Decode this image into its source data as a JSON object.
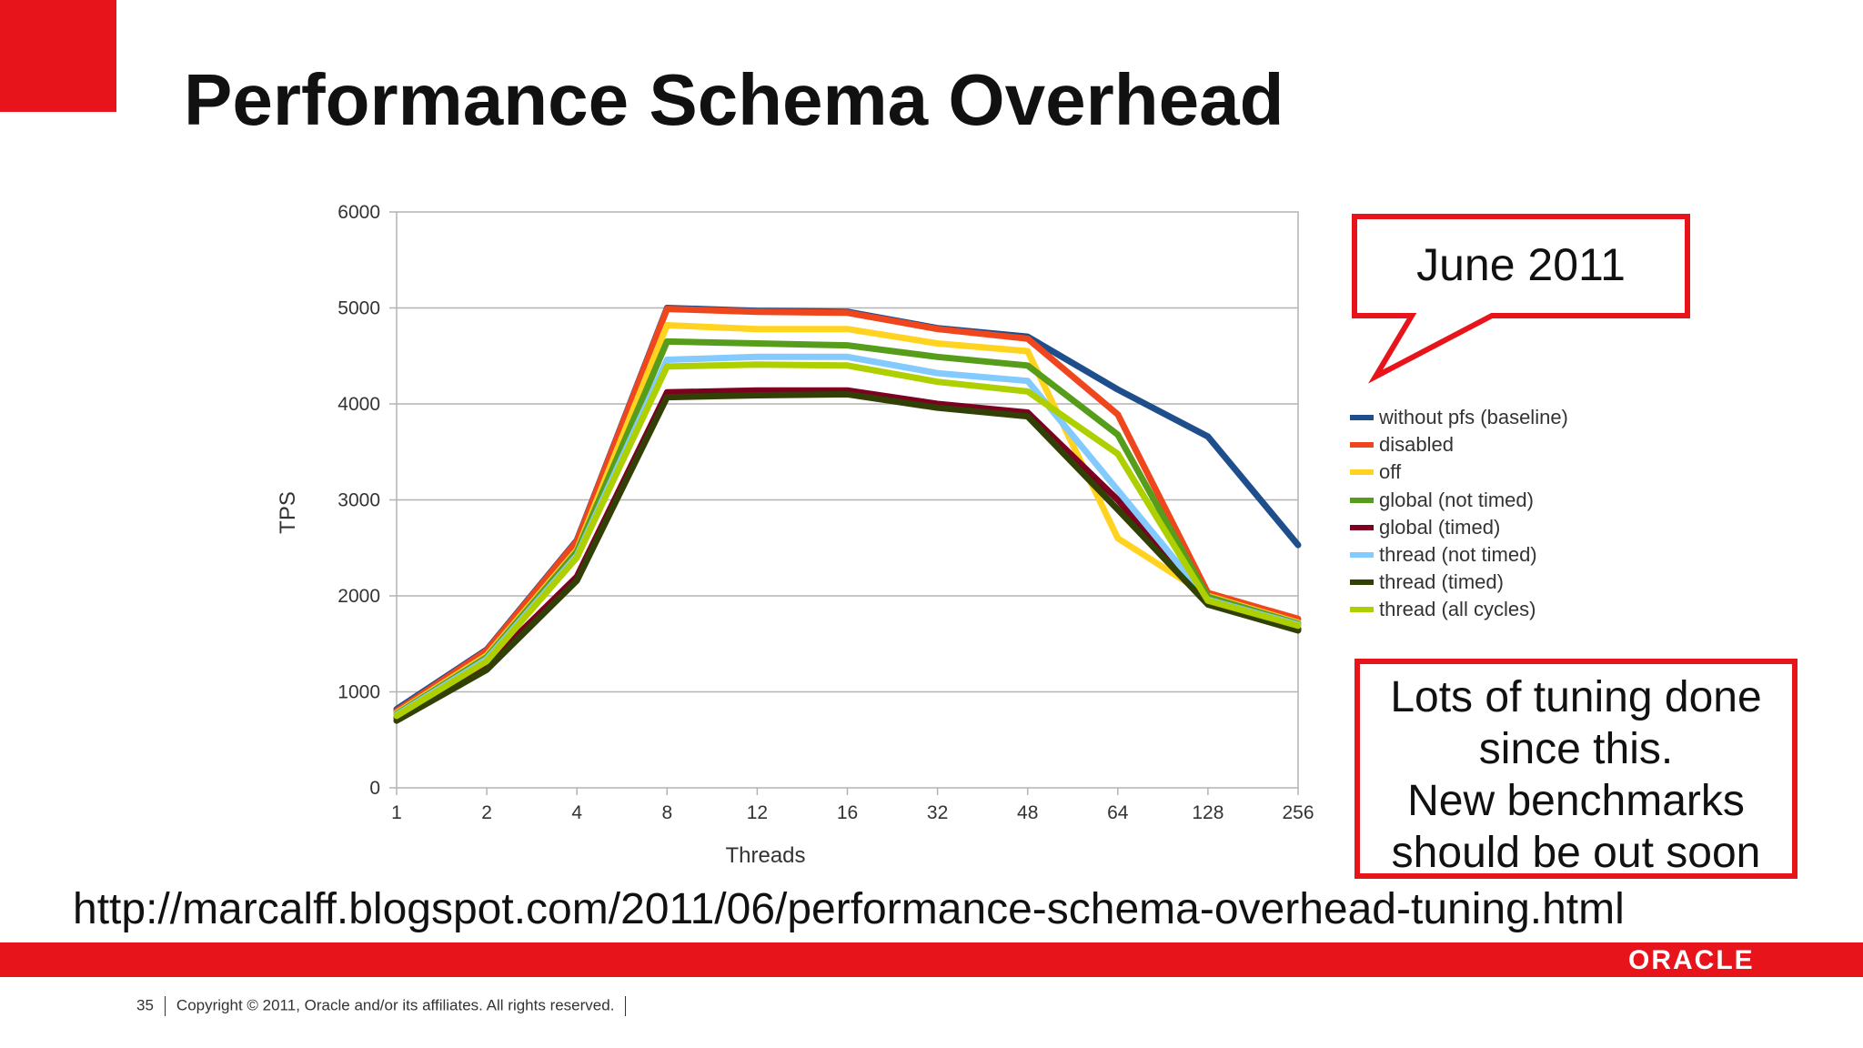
{
  "slide": {
    "title": "Performance Schema Overhead",
    "callout_date": "June 2011",
    "note": "Lots of tuning done\nsince this.\nNew benchmarks\nshould be out soon",
    "url": "http://marcalff.blogspot.com/2011/06/performance-schema-overhead-tuning.html",
    "logo_text": "ORACLE",
    "page_number": "35",
    "copyright": "Copyright © 2011, Oracle and/or its affiliates. All rights reserved.",
    "accent_color": "#e8141c"
  },
  "chart_data": {
    "type": "line",
    "xlabel": "Threads",
    "ylabel": "TPS",
    "categories": [
      "1",
      "2",
      "4",
      "8",
      "12",
      "16",
      "32",
      "48",
      "64",
      "128",
      "256"
    ],
    "ylim": [
      0,
      6000
    ],
    "yticks": [
      0,
      1000,
      2000,
      3000,
      4000,
      5000,
      6000
    ],
    "grid": true,
    "legend_position": "right",
    "series": [
      {
        "name": "without pfs (baseline)",
        "color": "#1f4e8c",
        "values": [
          820,
          1440,
          2580,
          5000,
          4970,
          4960,
          4790,
          4700,
          4150,
          3660,
          2530
        ]
      },
      {
        "name": "disabled",
        "color": "#f0461e",
        "values": [
          800,
          1430,
          2570,
          4990,
          4960,
          4950,
          4780,
          4680,
          3890,
          2030,
          1760
        ]
      },
      {
        "name": "off",
        "color": "#ffd320",
        "values": [
          780,
          1380,
          2480,
          4820,
          4780,
          4780,
          4630,
          4550,
          2600,
          2000,
          1720
        ]
      },
      {
        "name": "global (not timed)",
        "color": "#579d1c",
        "values": [
          770,
          1360,
          2460,
          4650,
          4630,
          4610,
          4490,
          4400,
          3680,
          1990,
          1710
        ]
      },
      {
        "name": "global (timed)",
        "color": "#7e0021",
        "values": [
          730,
          1280,
          2200,
          4120,
          4140,
          4140,
          4000,
          3910,
          3000,
          1930,
          1660
        ]
      },
      {
        "name": "thread (not timed)",
        "color": "#83caff",
        "values": [
          760,
          1340,
          2420,
          4460,
          4490,
          4490,
          4320,
          4240,
          3100,
          1960,
          1700
        ]
      },
      {
        "name": "thread (timed)",
        "color": "#314004",
        "values": [
          700,
          1230,
          2160,
          4070,
          4090,
          4100,
          3960,
          3870,
          2900,
          1910,
          1640
        ]
      },
      {
        "name": "thread (all cycles)",
        "color": "#aecf00",
        "values": [
          750,
          1320,
          2400,
          4390,
          4410,
          4400,
          4230,
          4130,
          3480,
          1950,
          1690
        ]
      }
    ]
  }
}
